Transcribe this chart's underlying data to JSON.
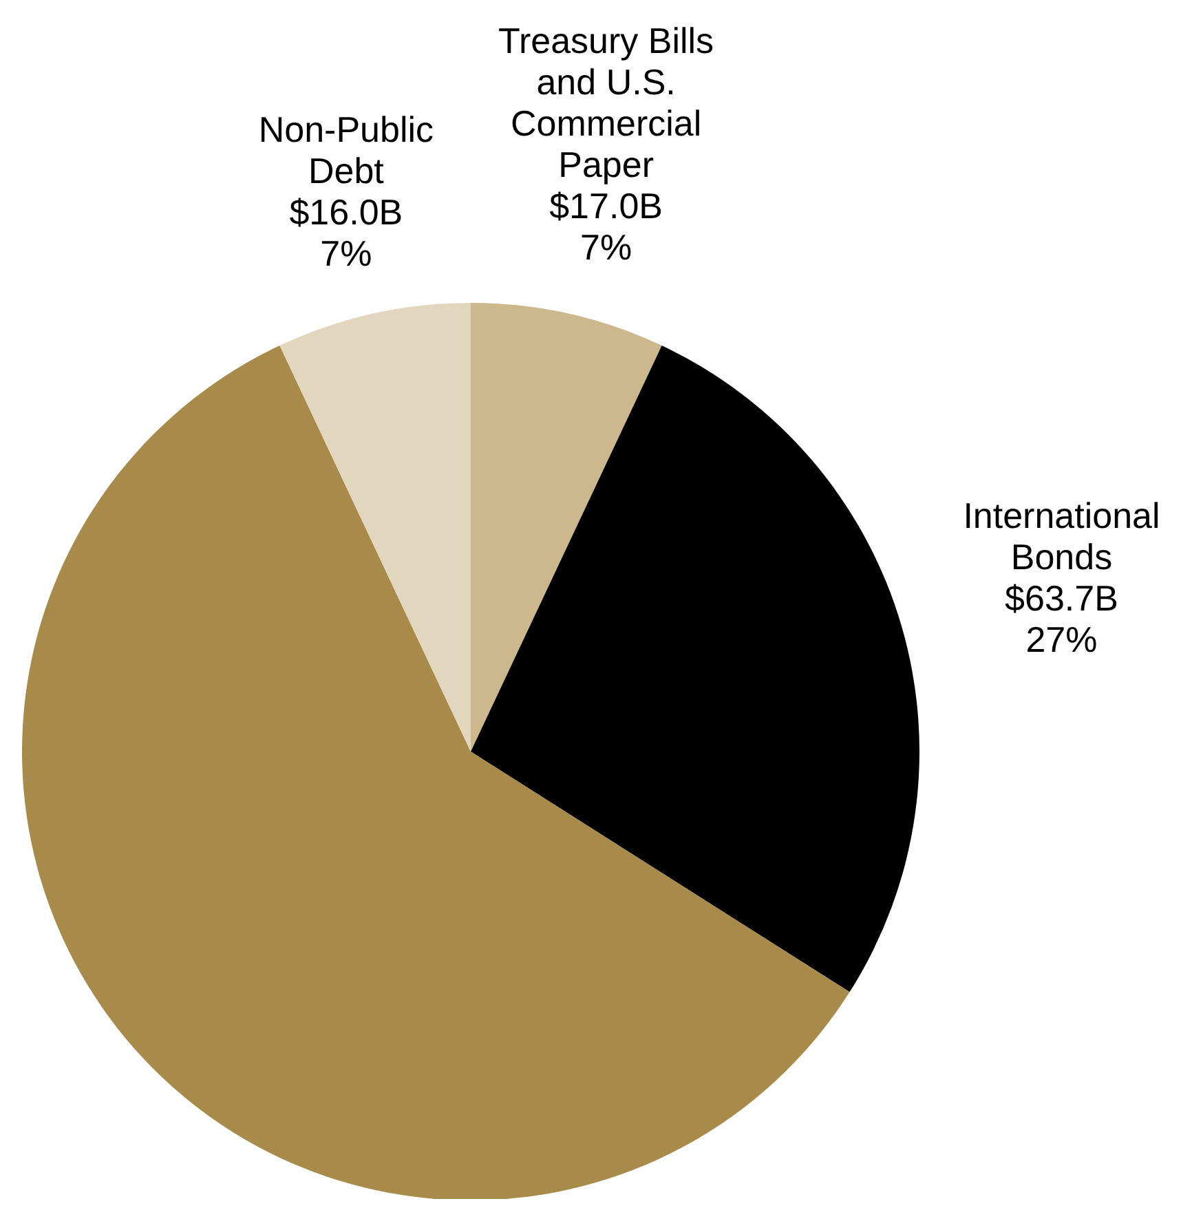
{
  "chart_data": {
    "type": "pie",
    "categories": [
      "Treasury Bills\nand U.S.\nCommercial\nPaper\n$17.0B",
      "International\nBonds\n$63.7B",
      null,
      "Non-Public\nDebt\n$16.0B"
    ],
    "values": [
      7,
      27,
      59,
      7
    ],
    "colors": [
      "#cdb78d",
      "#000000",
      "#a88b4a",
      "#e2d6bf"
    ],
    "value_labels": [
      "7%",
      "27%",
      null,
      "7%"
    ]
  }
}
